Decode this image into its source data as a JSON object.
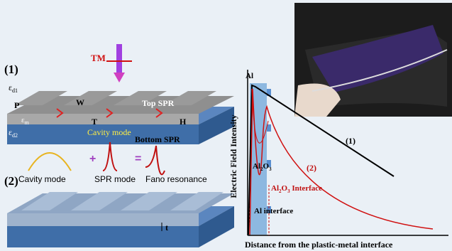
{
  "panel_1": {
    "label": "(1)",
    "polarization": "TM",
    "eps_d1": {
      "symbol": "ε",
      "sub": "d1"
    },
    "eps_m": {
      "symbol": "ε",
      "sub": "m"
    },
    "eps_d2": {
      "symbol": "ε",
      "sub": "d2"
    },
    "period": "P",
    "width": "W",
    "thickness": "T",
    "height": "H",
    "top_spr": "Top SPR",
    "cavity": "Cavity mode",
    "bottom_spr": "Bottom SPR"
  },
  "modes": {
    "cavity": "Cavity mode",
    "plus": "+",
    "spr": "SPR mode",
    "equals": "=",
    "fano": "Fano resonance"
  },
  "panel_2": {
    "label": "(2)",
    "thickness": "t"
  },
  "plot": {
    "y_label": "Electric Field Intensity",
    "x_label": "Distance from the plastic-metal interface",
    "al": "Al",
    "al2o3": {
      "a": "Al",
      "b": "2",
      "c": "O",
      "d": "3"
    },
    "al2o3_interface": {
      "a": "Al",
      "b": "2",
      "c": "O",
      "d": "3",
      "e": " Interface"
    },
    "al_interface": "Al interface",
    "curve_1": "(1)",
    "curve_2": "(2)"
  }
}
